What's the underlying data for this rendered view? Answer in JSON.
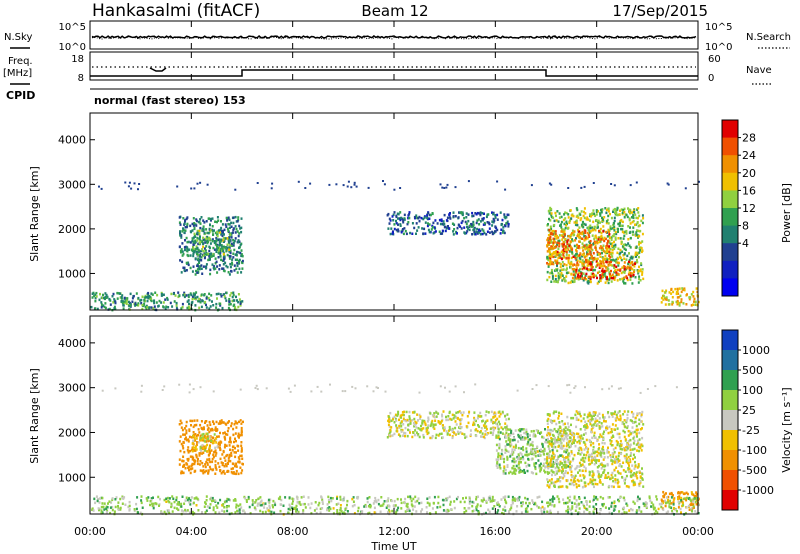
{
  "header": {
    "station": "Hankasalmi (fitACF)",
    "beam": "Beam 12",
    "date": "17/Sep/2015"
  },
  "noise_panel": {
    "left_label": "N.Sky",
    "right_label": "N.Search",
    "left_ticks": [
      "10^5",
      "10^0"
    ],
    "right_ticks": [
      "10^5",
      "10^0"
    ]
  },
  "freq_panel": {
    "left_label_line1": "Freq.",
    "left_label_line2": "[MHz]",
    "right_label": "Nave",
    "left_ticks": [
      "18",
      "8"
    ],
    "right_ticks": [
      "60",
      "0"
    ]
  },
  "cpid": {
    "label": "CPID",
    "text": "normal (fast stereo) 153"
  },
  "time_axis": {
    "label": "Time UT",
    "ticks": [
      "00:00",
      "04:00",
      "08:00",
      "12:00",
      "16:00",
      "20:00",
      "00:00"
    ]
  },
  "range_axis": {
    "label": "Slant Range [km]",
    "ticks": [
      "1000",
      "2000",
      "3000",
      "4000"
    ]
  },
  "power_scale": {
    "label": "Power [dB]",
    "ticks": [
      "28",
      "24",
      "20",
      "16",
      "12",
      "8",
      "4"
    ],
    "colors": [
      "#e00000",
      "#f05000",
      "#f09000",
      "#f0c000",
      "#90d040",
      "#30a050",
      "#208070",
      "#204090",
      "#1020c0",
      "#0000f0"
    ]
  },
  "velocity_scale": {
    "label": "Velocity [m s⁻¹]",
    "ticks": [
      "1000",
      "500",
      "100",
      "25",
      "-25",
      "-100",
      "-500",
      "-1000"
    ],
    "colors": [
      "#1040c0",
      "#2070a0",
      "#30a050",
      "#90d040",
      "#c8c8c0",
      "#f0c000",
      "#f09000",
      "#f05000",
      "#e00000"
    ]
  },
  "chart_data": {
    "type": "heatmap",
    "title": "Hankasalmi (fitACF) Beam 12 17/Sep/2015",
    "xlabel": "Time UT",
    "ylabel": "Slant Range [km]",
    "xlim": [
      0,
      24
    ],
    "ylim": [
      180,
      4600
    ],
    "panels": [
      {
        "name": "Power",
        "units": "dB",
        "colorbar_range": [
          0,
          30
        ],
        "regions": [
          {
            "t": [
              3.5,
              6.0
            ],
            "r": [
              1000,
              2300
            ],
            "value": 10
          },
          {
            "t": [
              4.0,
              5.5
            ],
            "r": [
              1400,
              2000
            ],
            "value": 14
          },
          {
            "t": [
              11.7,
              16.5
            ],
            "r": [
              1900,
              2400
            ],
            "value": 8
          },
          {
            "t": [
              18.0,
              21.8
            ],
            "r": [
              800,
              2500
            ],
            "value": 16
          },
          {
            "t": [
              18.0,
              20.5
            ],
            "r": [
              1200,
              2000
            ],
            "value": 24
          },
          {
            "t": [
              19.0,
              21.5
            ],
            "r": [
              900,
              1300
            ],
            "value": 26
          },
          {
            "t": [
              0.0,
              6.0
            ],
            "r": [
              200,
              600
            ],
            "value": 12
          },
          {
            "t": [
              22.5,
              24.0
            ],
            "r": [
              300,
              700
            ],
            "value": 20
          }
        ]
      },
      {
        "name": "Velocity",
        "units": "m s^-1",
        "colorbar_range": [
          -1000,
          1000
        ],
        "regions": [
          {
            "t": [
              3.5,
              6.0
            ],
            "r": [
              1100,
              2300
            ],
            "value": -200
          },
          {
            "t": [
              4.0,
              5.0
            ],
            "r": [
              1600,
              2000
            ],
            "value": 0
          },
          {
            "t": [
              11.7,
              16.5
            ],
            "r": [
              1900,
              2500
            ],
            "value": 0
          },
          {
            "t": [
              16.0,
              19.0
            ],
            "r": [
              1100,
              2100
            ],
            "value": 50
          },
          {
            "t": [
              18.0,
              21.8
            ],
            "r": [
              800,
              2500
            ],
            "value": 0
          },
          {
            "t": [
              22.5,
              24.0
            ],
            "r": [
              300,
              700
            ],
            "value": -150
          },
          {
            "t": [
              0.0,
              24.0
            ],
            "r": [
              200,
              600
            ],
            "value": 50
          }
        ]
      }
    ]
  }
}
